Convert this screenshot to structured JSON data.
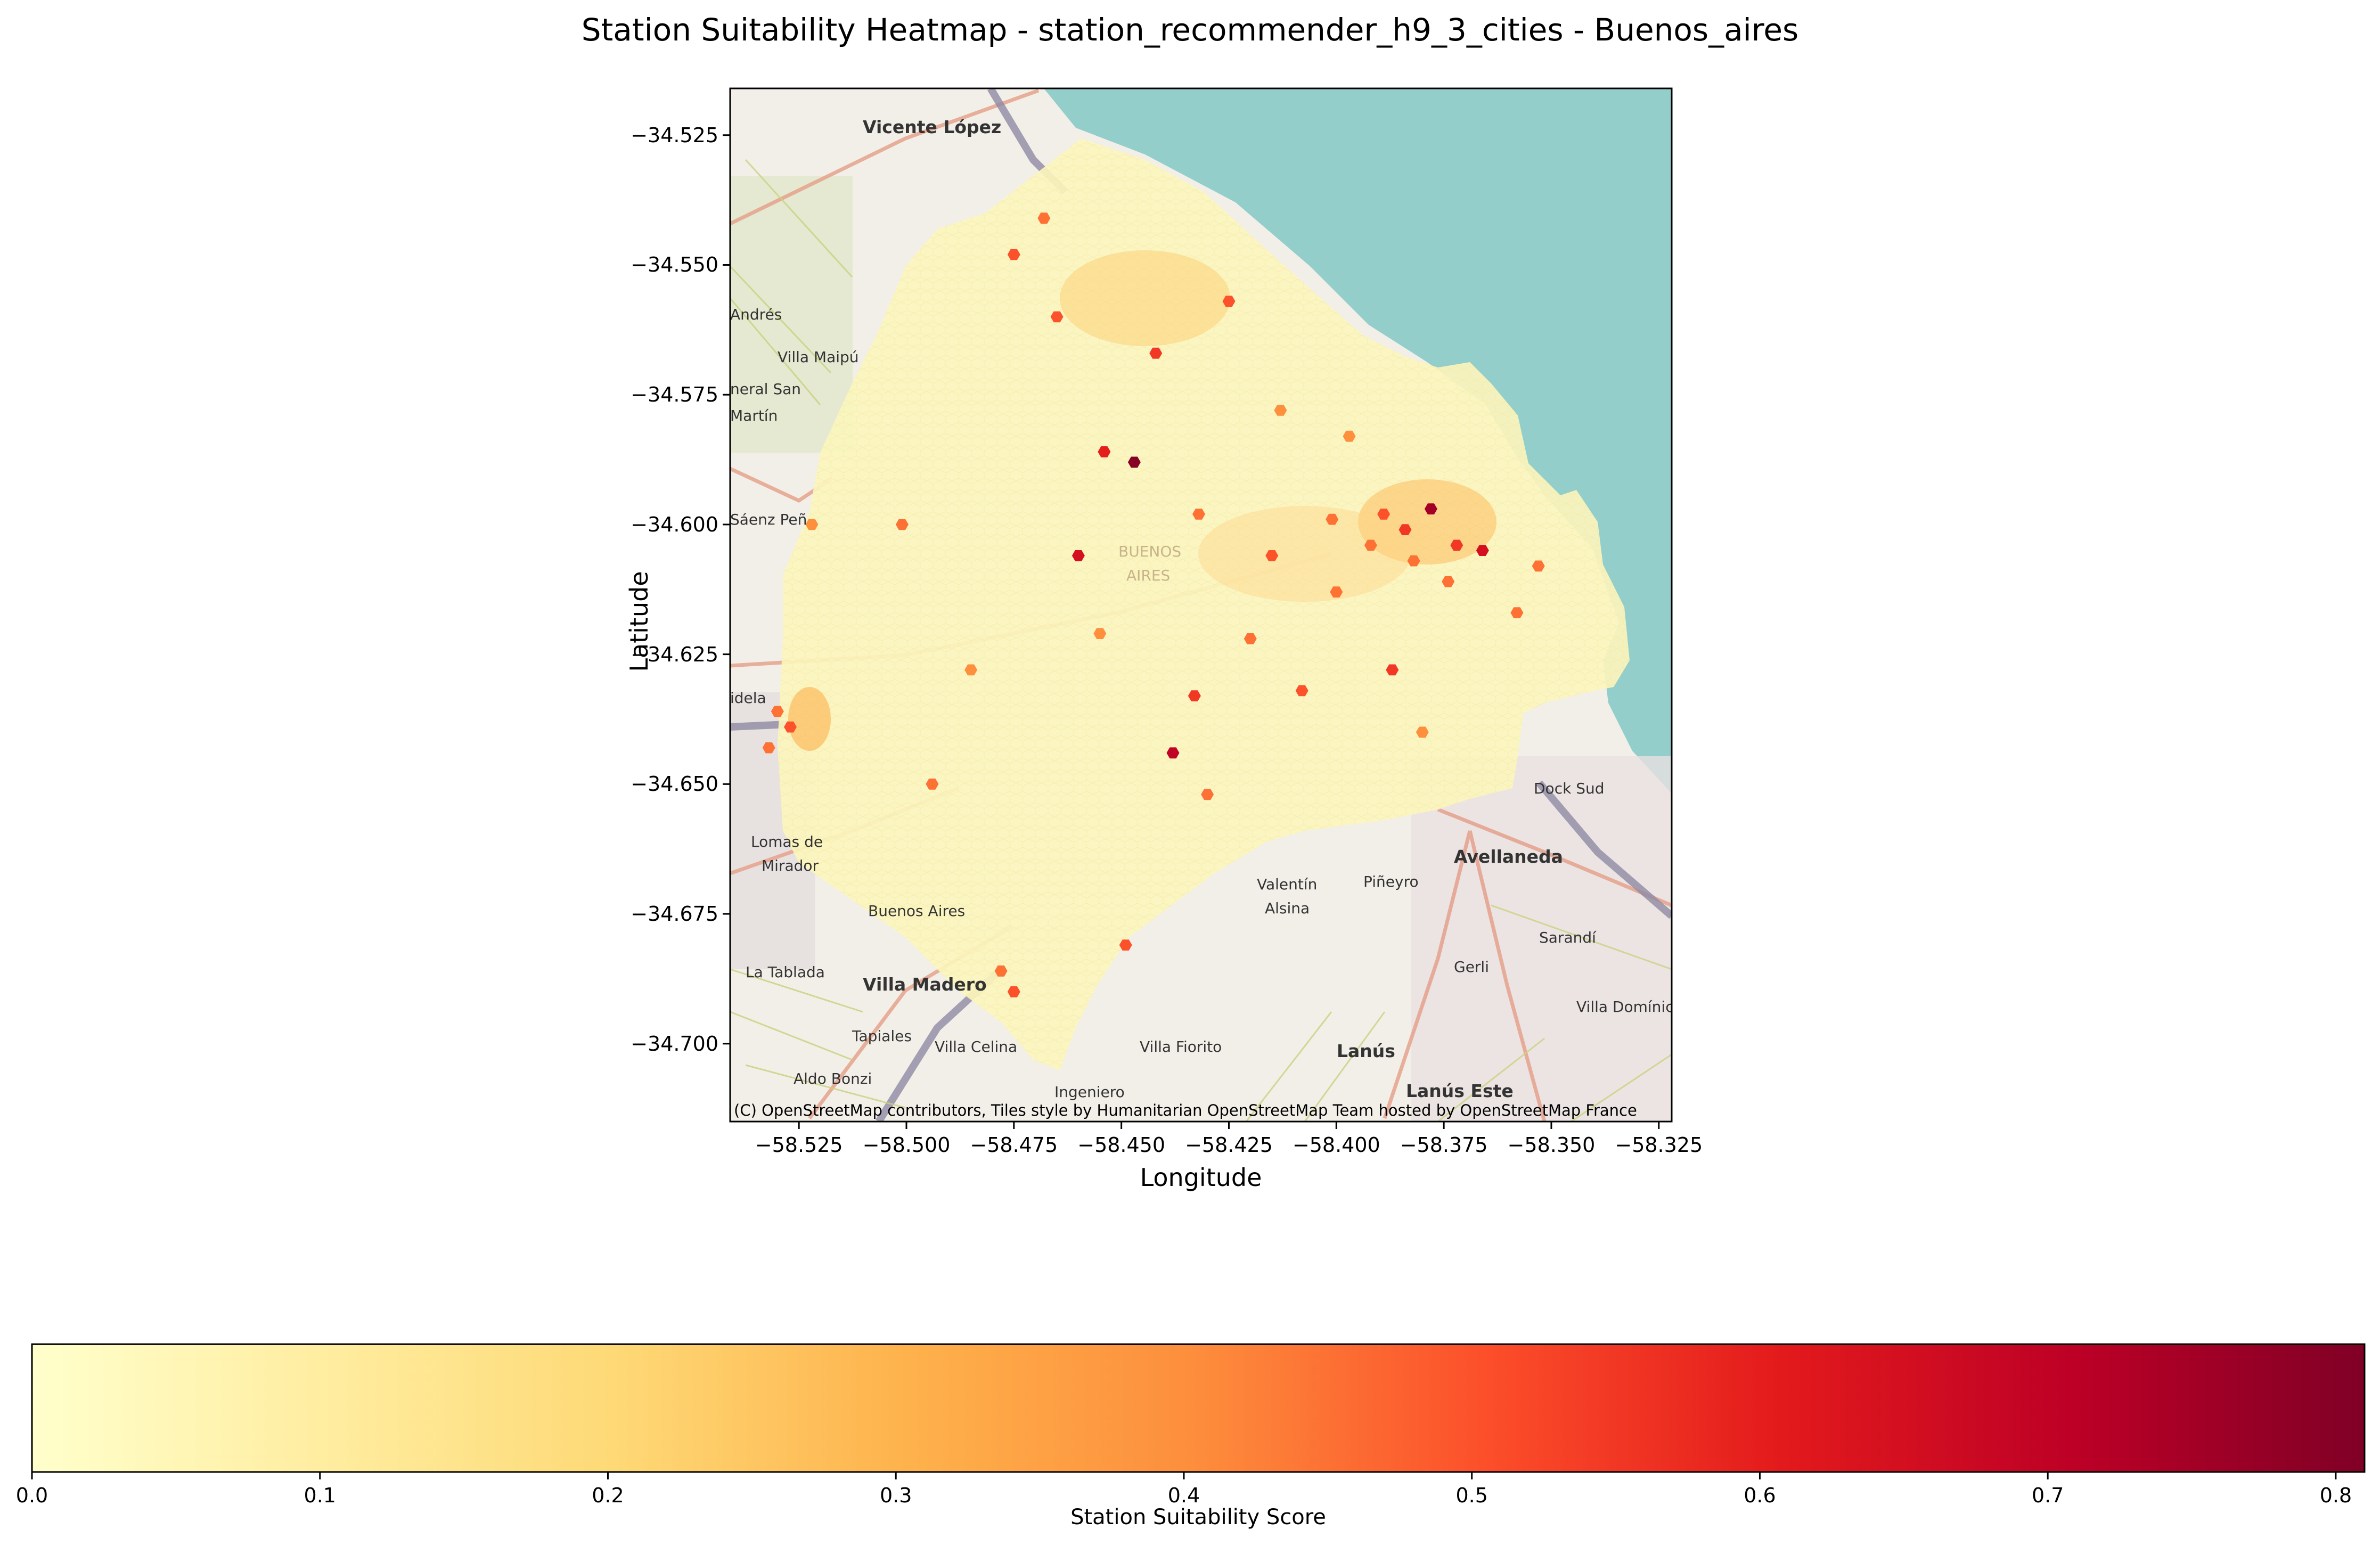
{
  "figure": {
    "title": "Station Suitability Heatmap - station_recommender_h9_3_cities - Buenos_aires"
  },
  "chart_data": {
    "type": "heatmap",
    "title": "Station Suitability Heatmap - station_recommender_h9_3_cities - Buenos_aires",
    "xlabel": "Longitude",
    "ylabel": "Latitude",
    "xlim": [
      -58.541,
      -58.322
    ],
    "ylim": [
      -34.715,
      -34.516
    ],
    "x_ticks": [
      "−58.525",
      "−58.500",
      "−58.475",
      "−58.450",
      "−58.425",
      "−58.400",
      "−58.375",
      "−58.350",
      "−58.325"
    ],
    "y_ticks": [
      "−34.525",
      "−34.550",
      "−34.575",
      "−34.600",
      "−34.625",
      "−34.650",
      "−34.675",
      "−34.700"
    ],
    "x_tick_values": [
      -58.525,
      -58.5,
      -58.475,
      -58.45,
      -58.425,
      -58.4,
      -58.375,
      -58.35,
      -58.325
    ],
    "y_tick_values": [
      -34.525,
      -34.55,
      -34.575,
      -34.6,
      -34.625,
      -34.65,
      -34.675,
      -34.7
    ],
    "colorbar": {
      "label": "Station Suitability Score",
      "range": [
        0,
        0.81
      ],
      "ticks": [
        "0.0",
        "0.1",
        "0.2",
        "0.3",
        "0.4",
        "0.5",
        "0.6",
        "0.7",
        "0.8"
      ],
      "tick_values": [
        0,
        0.1,
        0.2,
        0.3,
        0.4,
        0.5,
        0.6,
        0.7,
        0.8
      ],
      "colormap": "YlOrRd",
      "colors": [
        "#ffffcc",
        "#ffeda0",
        "#fed976",
        "#feb24c",
        "#fd8d3c",
        "#fc4e2a",
        "#e31a1c",
        "#bd0026",
        "#800026"
      ]
    },
    "grid": false,
    "hot_spots": [
      {
        "lon": -58.389,
        "lat": -34.598,
        "score": 0.5
      },
      {
        "lon": -58.384,
        "lat": -34.601,
        "score": 0.55
      },
      {
        "lon": -58.378,
        "lat": -34.597,
        "score": 0.75
      },
      {
        "lon": -58.372,
        "lat": -34.604,
        "score": 0.55
      },
      {
        "lon": -58.366,
        "lat": -34.605,
        "score": 0.65
      },
      {
        "lon": -58.382,
        "lat": -34.607,
        "score": 0.45
      },
      {
        "lon": -58.392,
        "lat": -34.604,
        "score": 0.45
      },
      {
        "lon": -58.374,
        "lat": -34.611,
        "score": 0.45
      },
      {
        "lon": -58.447,
        "lat": -34.588,
        "score": 0.8
      },
      {
        "lon": -58.46,
        "lat": -34.606,
        "score": 0.65
      },
      {
        "lon": -58.454,
        "lat": -34.586,
        "score": 0.6
      },
      {
        "lon": -58.438,
        "lat": -34.644,
        "score": 0.7
      },
      {
        "lon": -58.425,
        "lat": -34.557,
        "score": 0.5
      },
      {
        "lon": -58.442,
        "lat": -34.567,
        "score": 0.55
      },
      {
        "lon": -58.465,
        "lat": -34.56,
        "score": 0.5
      },
      {
        "lon": -58.475,
        "lat": -34.548,
        "score": 0.5
      },
      {
        "lon": -58.468,
        "lat": -34.541,
        "score": 0.45
      },
      {
        "lon": -58.527,
        "lat": -34.639,
        "score": 0.5
      },
      {
        "lon": -58.532,
        "lat": -34.643,
        "score": 0.45
      },
      {
        "lon": -58.53,
        "lat": -34.636,
        "score": 0.45
      },
      {
        "lon": -58.433,
        "lat": -34.633,
        "score": 0.55
      },
      {
        "lon": -58.408,
        "lat": -34.632,
        "score": 0.5
      },
      {
        "lon": -58.387,
        "lat": -34.628,
        "score": 0.55
      },
      {
        "lon": -58.449,
        "lat": -34.681,
        "score": 0.5
      },
      {
        "lon": -58.475,
        "lat": -34.69,
        "score": 0.5
      },
      {
        "lon": -58.478,
        "lat": -34.686,
        "score": 0.45
      },
      {
        "lon": -58.353,
        "lat": -34.608,
        "score": 0.45
      },
      {
        "lon": -58.358,
        "lat": -34.617,
        "score": 0.45
      },
      {
        "lon": -58.415,
        "lat": -34.606,
        "score": 0.5
      },
      {
        "lon": -58.42,
        "lat": -34.622,
        "score": 0.45
      },
      {
        "lon": -58.4,
        "lat": -34.613,
        "score": 0.45
      },
      {
        "lon": -58.401,
        "lat": -34.599,
        "score": 0.45
      },
      {
        "lon": -58.455,
        "lat": -34.621,
        "score": 0.4
      },
      {
        "lon": -58.432,
        "lat": -34.598,
        "score": 0.45
      },
      {
        "lon": -58.485,
        "lat": -34.628,
        "score": 0.4
      },
      {
        "lon": -58.501,
        "lat": -34.6,
        "score": 0.45
      },
      {
        "lon": -58.522,
        "lat": -34.6,
        "score": 0.4
      },
      {
        "lon": -58.413,
        "lat": -34.578,
        "score": 0.4
      },
      {
        "lon": -58.397,
        "lat": -34.583,
        "score": 0.4
      },
      {
        "lon": -58.43,
        "lat": -34.652,
        "score": 0.45
      },
      {
        "lon": -58.38,
        "lat": -34.64,
        "score": 0.4
      },
      {
        "lon": -58.494,
        "lat": -34.65,
        "score": 0.45
      }
    ]
  },
  "map": {
    "attribution": "(C) OpenStreetMap contributors, Tiles style by Humanitarian OpenStreetMap Team hosted by OpenStreetMap France",
    "place_labels": [
      {
        "name": "Vicente López",
        "big": true
      },
      {
        "name": "Andrés",
        "big": false
      },
      {
        "name": "Villa Maipú",
        "big": false
      },
      {
        "name": "neral San",
        "big": false
      },
      {
        "name": "Martín",
        "big": false
      },
      {
        "name": "Sáenz Peñ",
        "big": false
      },
      {
        "name": "BUENOS",
        "big": false
      },
      {
        "name": "AIRES",
        "big": false
      },
      {
        "name": "idela",
        "big": false
      },
      {
        "name": "Lomas de",
        "big": false
      },
      {
        "name": "Mirador",
        "big": false
      },
      {
        "name": "La Tablada",
        "big": false
      },
      {
        "name": "Villa Madero",
        "big": true
      },
      {
        "name": "Tapiales",
        "big": false
      },
      {
        "name": "Villa Celina",
        "big": false
      },
      {
        "name": "Aldo Bonzi",
        "big": false
      },
      {
        "name": "Ingeniero",
        "big": false
      },
      {
        "name": "Villa Fiorito",
        "big": false
      },
      {
        "name": "Valentín",
        "big": false
      },
      {
        "name": "Alsina",
        "big": false
      },
      {
        "name": "Piñeyro",
        "big": false
      },
      {
        "name": "Avellaneda",
        "big": true
      },
      {
        "name": "Dock Sud",
        "big": false
      },
      {
        "name": "Sarandí",
        "big": false
      },
      {
        "name": "Gerli",
        "big": false
      },
      {
        "name": "Villa Domínic",
        "big": false
      },
      {
        "name": "Lanús",
        "big": true
      },
      {
        "name": "Lanús Este",
        "big": true
      },
      {
        "name": "Buenos Aires",
        "big": false
      }
    ]
  }
}
